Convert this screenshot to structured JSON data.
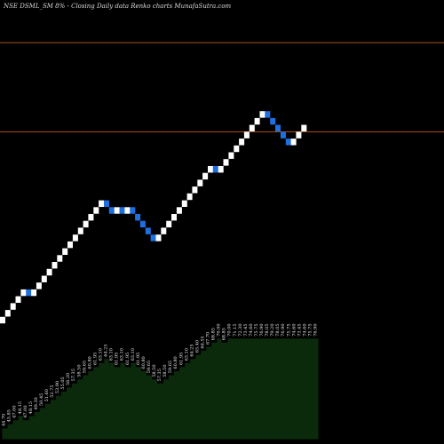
{
  "chart_data": {
    "type": "renko",
    "title": "NSE DSML_SM  8% -  Closing Daily data  Renko  charts MunafaSutra.com",
    "colors": {
      "background": "#000000",
      "up_brick": "#ffffff",
      "down_brick": "#1e6fe0",
      "reference_line": "#a8521a",
      "area_fill": "#0b2a0b",
      "area_edge": "#000000"
    },
    "reference_lines": [
      189.5,
      163.5
    ],
    "bricks": [
      {
        "dir": "up",
        "close": 109.5
      },
      {
        "dir": "up",
        "close": 111.5
      },
      {
        "dir": "up",
        "close": 113.5
      },
      {
        "dir": "up",
        "close": 115.5
      },
      {
        "dir": "up",
        "close": 117.5
      },
      {
        "dir": "down",
        "close": 115.5
      },
      {
        "dir": "up",
        "close": 117.5
      },
      {
        "dir": "up",
        "close": 119.5
      },
      {
        "dir": "up",
        "close": 121.5
      },
      {
        "dir": "up",
        "close": 123.5
      },
      {
        "dir": "up",
        "close": 125.5
      },
      {
        "dir": "up",
        "close": 127.5
      },
      {
        "dir": "up",
        "close": 129.5
      },
      {
        "dir": "up",
        "close": 131.5
      },
      {
        "dir": "up",
        "close": 133.5
      },
      {
        "dir": "up",
        "close": 135.5
      },
      {
        "dir": "up",
        "close": 137.5
      },
      {
        "dir": "up",
        "close": 139.5
      },
      {
        "dir": "up",
        "close": 141.5
      },
      {
        "dir": "up",
        "close": 143.5
      },
      {
        "dir": "down",
        "close": 141.5
      },
      {
        "dir": "down",
        "close": 139.5
      },
      {
        "dir": "up",
        "close": 141.5
      },
      {
        "dir": "down",
        "close": 139.5
      },
      {
        "dir": "up",
        "close": 141.5
      },
      {
        "dir": "down",
        "close": 139.5
      },
      {
        "dir": "down",
        "close": 137.5
      },
      {
        "dir": "down",
        "close": 135.5
      },
      {
        "dir": "down",
        "close": 133.5
      },
      {
        "dir": "down",
        "close": 131.5
      },
      {
        "dir": "up",
        "close": 133.5
      },
      {
        "dir": "up",
        "close": 135.5
      },
      {
        "dir": "up",
        "close": 137.5
      },
      {
        "dir": "up",
        "close": 139.5
      },
      {
        "dir": "up",
        "close": 141.5
      },
      {
        "dir": "up",
        "close": 143.5
      },
      {
        "dir": "up",
        "close": 145.5
      },
      {
        "dir": "up",
        "close": 147.5
      },
      {
        "dir": "up",
        "close": 149.5
      },
      {
        "dir": "up",
        "close": 151.5
      },
      {
        "dir": "up",
        "close": 153.5
      },
      {
        "dir": "down",
        "close": 151.5
      },
      {
        "dir": "up",
        "close": 153.5
      },
      {
        "dir": "up",
        "close": 155.5
      },
      {
        "dir": "up",
        "close": 157.5
      },
      {
        "dir": "up",
        "close": 159.5
      },
      {
        "dir": "up",
        "close": 161.5
      },
      {
        "dir": "up",
        "close": 163.5
      },
      {
        "dir": "up",
        "close": 165.5
      },
      {
        "dir": "up",
        "close": 167.5
      },
      {
        "dir": "up",
        "close": 169.5
      },
      {
        "dir": "down",
        "close": 167.5
      },
      {
        "dir": "down",
        "close": 165.5
      },
      {
        "dir": "down",
        "close": 163.5
      },
      {
        "dir": "down",
        "close": 161.5
      },
      {
        "dir": "down",
        "close": 159.5
      },
      {
        "dir": "up",
        "close": 161.5
      },
      {
        "dir": "up",
        "close": 163.5
      },
      {
        "dir": "up",
        "close": 165.5
      }
    ],
    "value_labels": [
      "44.70",
      "45.85",
      "47.00",
      "48.15",
      "47.00",
      "48.15",
      "49.30",
      "50.45",
      "51.60",
      "52.75",
      "53.90",
      "55.05",
      "56.20",
      "57.35",
      "58.50",
      "59.65",
      "60.80",
      "61.95",
      "63.10",
      "64.25",
      "63.10",
      "61.95",
      "63.10",
      "61.95",
      "63.10",
      "61.95",
      "60.80",
      "59.65",
      "58.50",
      "57.35",
      "58.50",
      "59.65",
      "60.80",
      "61.95",
      "63.10",
      "64.25",
      "65.40",
      "66.55",
      "67.70",
      "68.85",
      "70.00",
      "68.85",
      "70.00",
      "71.15",
      "72.30",
      "73.45",
      "74.60",
      "75.75",
      "76.90",
      "78.05",
      "79.20",
      "78.05",
      "76.90",
      "75.75",
      "74.60",
      "73.45",
      "74.60",
      "75.75",
      "76.90"
    ],
    "area_levels": [
      0,
      1,
      2,
      3,
      2,
      3,
      4,
      5,
      6,
      7,
      8,
      9,
      10,
      11,
      12,
      13,
      14,
      15,
      16,
      17,
      16,
      15,
      16,
      15,
      16,
      15,
      14,
      13,
      12,
      11,
      12,
      13,
      14,
      15,
      16,
      17,
      18,
      19,
      20,
      21,
      22,
      21,
      22,
      22,
      22,
      22,
      22,
      22,
      22,
      22,
      22,
      22,
      22,
      22,
      22,
      22,
      22,
      22,
      22
    ]
  }
}
